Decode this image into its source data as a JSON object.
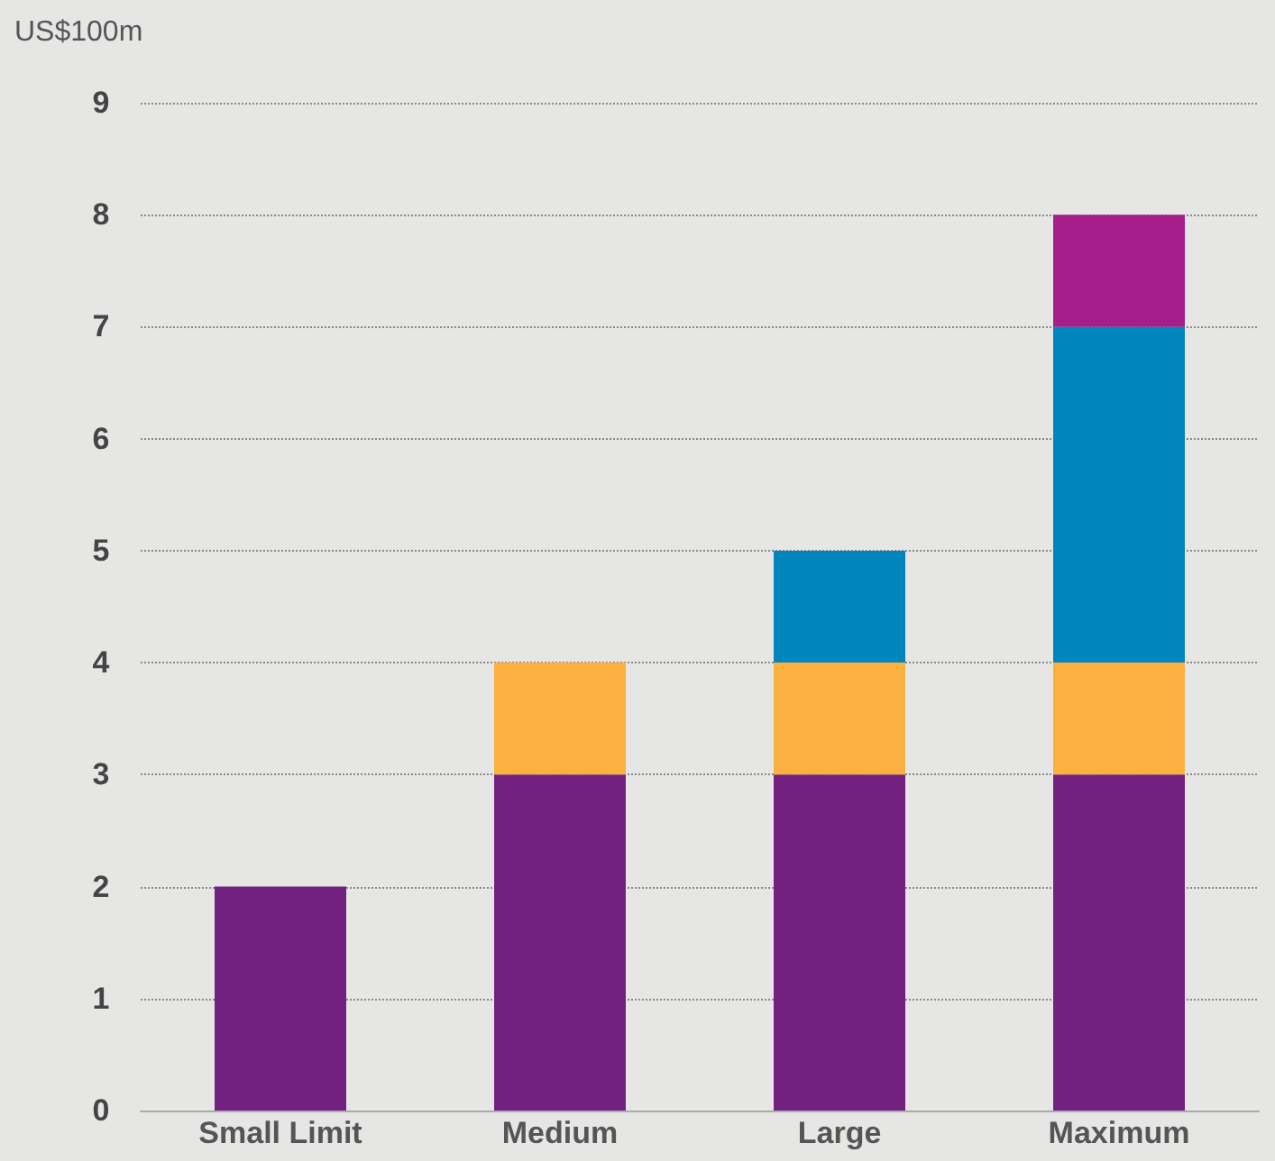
{
  "chart_data": {
    "type": "bar",
    "ylabel": "US$100m",
    "categories": [
      "Small Limit",
      "Medium",
      "Large",
      "Maximum"
    ],
    "stacked": true,
    "series": [
      {
        "color": "#732181",
        "values": [
          2,
          3,
          3,
          3
        ]
      },
      {
        "color": "#fbb040",
        "values": [
          null,
          1,
          1,
          1
        ]
      },
      {
        "color": "#0085bc",
        "values": [
          null,
          null,
          1,
          3
        ]
      },
      {
        "color": "#a61e8c",
        "values": [
          null,
          null,
          null,
          1
        ]
      }
    ],
    "ylim": [
      0,
      9
    ],
    "yticks": [
      0,
      1,
      2,
      3,
      4,
      5,
      6,
      7,
      8,
      9
    ],
    "grid": "y"
  }
}
